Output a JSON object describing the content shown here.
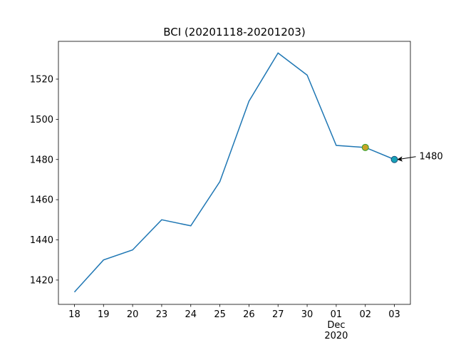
{
  "chart_data": {
    "type": "line",
    "title": "BCI (20201118-20201203)",
    "categories": [
      "18",
      "19",
      "20",
      "23",
      "24",
      "25",
      "26",
      "27",
      "30",
      "01\nDec\n2020",
      "02",
      "03"
    ],
    "series": [
      {
        "color": "#1f77b4",
        "values": [
          1414,
          1430,
          1435,
          1450,
          1447,
          1469,
          1509,
          1533,
          1522,
          1487,
          1486,
          1480
        ]
      }
    ],
    "points": [
      {
        "x": 10,
        "y": 1486,
        "color": "#c9a227",
        "edge": "#2ca02c"
      },
      {
        "x": 11,
        "y": 1480,
        "color": "#17a2b8",
        "edge": "#1f4e79"
      }
    ],
    "annotation": {
      "text": "1480",
      "x": 11,
      "y": 1480
    },
    "xlim": [
      -0.55,
      11.55
    ],
    "ylim": [
      1407.9,
      1538.8
    ],
    "yticks": [
      1420,
      1440,
      1460,
      1480,
      1500,
      1520
    ]
  }
}
